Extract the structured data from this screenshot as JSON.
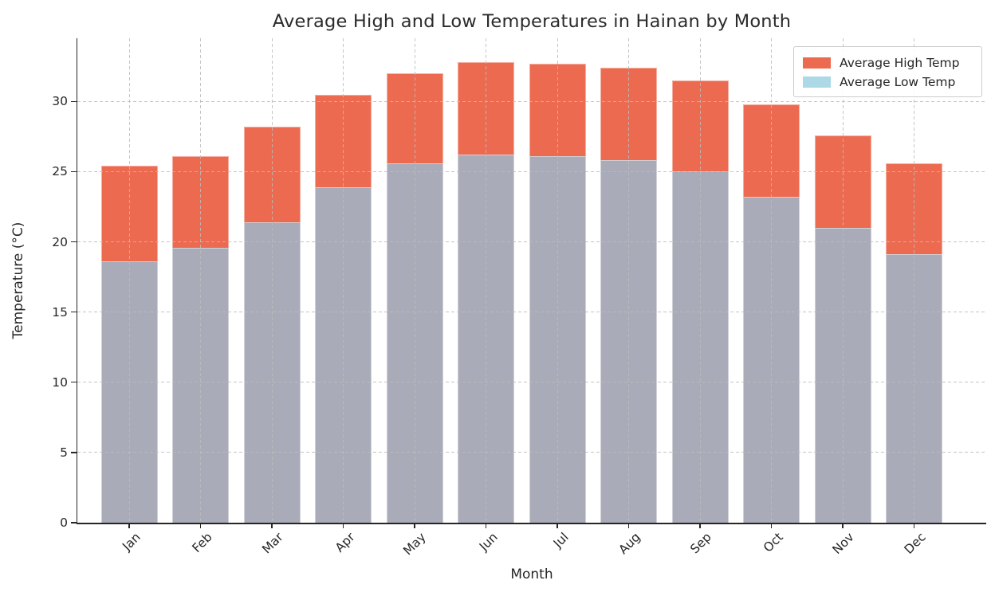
{
  "chart_data": {
    "type": "bar",
    "variant": "overlaid-bars",
    "title": "Average High and Low Temperatures in Hainan by Month",
    "xlabel": "Month",
    "ylabel": "Temperature (°C)",
    "categories": [
      "Jan",
      "Feb",
      "Mar",
      "Apr",
      "May",
      "Jun",
      "Jul",
      "Aug",
      "Sep",
      "Oct",
      "Nov",
      "Dec"
    ],
    "series": [
      {
        "name": "Average High Temp",
        "legend_color": "#ec6b50",
        "bar_color": "#ec6b50",
        "values": [
          25.4,
          26.1,
          28.2,
          30.5,
          32.0,
          32.8,
          32.7,
          32.4,
          31.5,
          29.8,
          27.6,
          25.6
        ]
      },
      {
        "name": "Average Low Temp",
        "legend_color": "#add8e6",
        "bar_color": "#a9acb8",
        "values": [
          18.6,
          19.6,
          21.4,
          23.9,
          25.6,
          26.2,
          26.1,
          25.8,
          25.0,
          23.2,
          21.0,
          19.1
        ]
      }
    ],
    "ylim": [
      0,
      34.5
    ],
    "yticks": [
      0,
      5,
      10,
      15,
      20,
      25,
      30
    ],
    "grid": true,
    "grid_style": "dashed",
    "grid_on_top_of_bars": true,
    "legend_position": "upper right",
    "background": "#ffffff",
    "axis_color": "#262626",
    "text_color": "#262626"
  }
}
